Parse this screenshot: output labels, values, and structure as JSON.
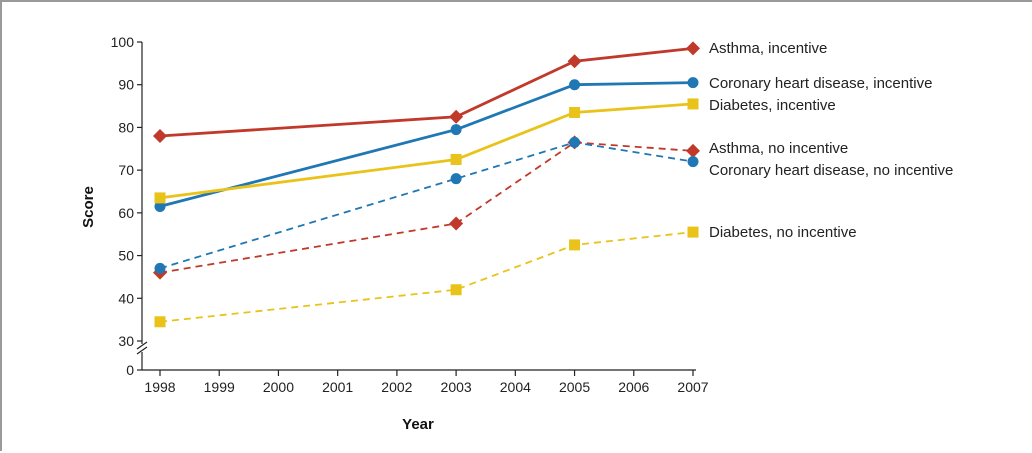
{
  "chart_data": {
    "type": "line",
    "xlabel": "Year",
    "ylabel": "Score",
    "x_ticks": [
      1998,
      1999,
      2000,
      2001,
      2002,
      2003,
      2004,
      2005,
      2006,
      2007
    ],
    "y_ticks": [
      0,
      30,
      40,
      50,
      60,
      70,
      80,
      90,
      100
    ],
    "ylim": [
      0,
      100
    ],
    "axis_break": "between 0 and 30",
    "grid": false,
    "legend": "direct labels at line ends",
    "colors": {
      "asthma": "#c0392b",
      "chd": "#1f77b4",
      "diabetes": "#e9c31a"
    },
    "series": [
      {
        "name": "Asthma, incentive",
        "color": "#c0392b",
        "marker": "diamond",
        "dash": "solid",
        "x": [
          1998,
          2003,
          2005,
          2007
        ],
        "y": [
          78,
          82.5,
          95.5,
          98.5
        ]
      },
      {
        "name": "Coronary heart disease, incentive",
        "color": "#1f77b4",
        "marker": "circle",
        "dash": "solid",
        "x": [
          1998,
          2003,
          2005,
          2007
        ],
        "y": [
          61.5,
          79.5,
          90,
          90.5
        ]
      },
      {
        "name": "Diabetes, incentive",
        "color": "#e9c31a",
        "marker": "square",
        "dash": "solid",
        "x": [
          1998,
          2003,
          2005,
          2007
        ],
        "y": [
          63.5,
          72.5,
          83.5,
          85.5
        ]
      },
      {
        "name": "Asthma, no incentive",
        "color": "#c0392b",
        "marker": "diamond",
        "dash": "dashed",
        "x": [
          1998,
          2003,
          2005,
          2007
        ],
        "y": [
          46,
          57.5,
          76.5,
          74.5
        ]
      },
      {
        "name": "Coronary heart disease, no incentive",
        "color": "#1f77b4",
        "marker": "circle",
        "dash": "dashed",
        "x": [
          1998,
          2003,
          2005,
          2007
        ],
        "y": [
          47,
          68,
          76.5,
          72
        ]
      },
      {
        "name": "Diabetes, no incentive",
        "color": "#e9c31a",
        "marker": "square",
        "dash": "dashed",
        "x": [
          1998,
          2003,
          2005,
          2007
        ],
        "y": [
          34.5,
          42,
          52.5,
          55.5
        ]
      }
    ]
  }
}
